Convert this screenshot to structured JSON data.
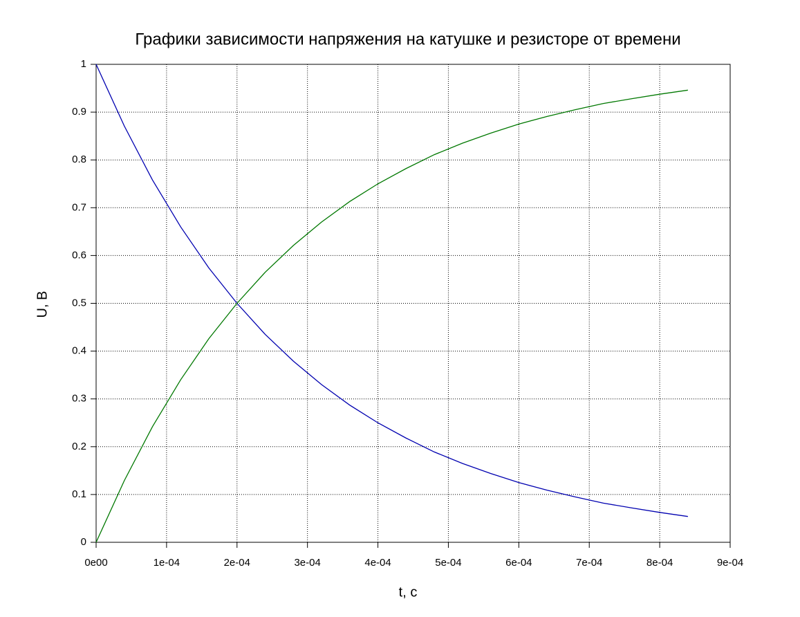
{
  "chart_data": {
    "type": "line",
    "title": "Графики зависимости напряжения на катушке и резисторе от времени",
    "x_label": "t, c",
    "y_label": "U, B",
    "x": [
      0,
      4e-05,
      8e-05,
      0.00012,
      0.00016,
      0.0002,
      0.00024,
      0.00028,
      0.00032,
      0.00036,
      0.0004,
      0.00044,
      0.00048,
      0.00052,
      0.00056,
      0.0006,
      0.00064,
      0.00068,
      0.00072,
      0.00076,
      0.0008,
      0.00084
    ],
    "series": [
      {
        "color": "#0000b0",
        "values": [
          1,
          0.871,
          0.758,
          0.66,
          0.574,
          0.5,
          0.435,
          0.379,
          0.33,
          0.287,
          0.25,
          0.218,
          0.189,
          0.165,
          0.144,
          0.125,
          0.109,
          0.095,
          0.082,
          0.072,
          0.0625,
          0.054
        ]
      },
      {
        "color": "#007800",
        "values": [
          0,
          0.129,
          0.242,
          0.34,
          0.426,
          0.5,
          0.565,
          0.621,
          0.67,
          0.713,
          0.75,
          0.782,
          0.811,
          0.835,
          0.856,
          0.875,
          0.891,
          0.905,
          0.918,
          0.928,
          0.9375,
          0.946
        ]
      }
    ],
    "xlim": [
      0,
      0.0009
    ],
    "xticks": [
      {
        "value": 0,
        "label": "0e00"
      },
      {
        "value": 0.0001,
        "label": "1e-04"
      },
      {
        "value": 0.0002,
        "label": "2e-04"
      },
      {
        "value": 0.0003,
        "label": "3e-04"
      },
      {
        "value": 0.0004,
        "label": "4e-04"
      },
      {
        "value": 0.0005,
        "label": "5e-04"
      },
      {
        "value": 0.0006,
        "label": "6e-04"
      },
      {
        "value": 0.0007,
        "label": "7e-04"
      },
      {
        "value": 0.0008,
        "label": "8e-04"
      },
      {
        "value": 0.0009,
        "label": "9e-04"
      }
    ],
    "ylim": [
      0,
      1
    ],
    "yticks": [
      0,
      0.1,
      0.2,
      0.3,
      0.4,
      0.5,
      0.6,
      0.7,
      0.8,
      0.9,
      1
    ],
    "grid": true
  }
}
